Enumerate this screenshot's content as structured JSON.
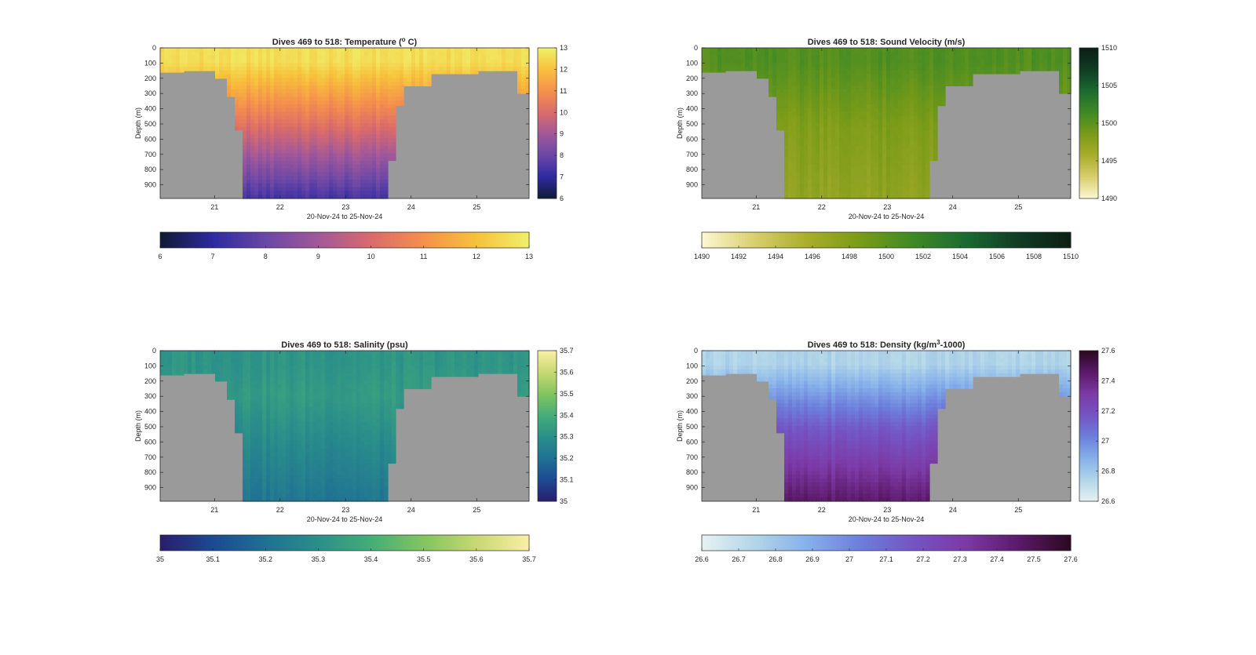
{
  "figure": {
    "title": ""
  },
  "chart_data": [
    {
      "type": "heatmap",
      "title": "Dives 469 to 518: Temperature (° C)",
      "title_parts": [
        "Dives 469 to 518: Temperature (",
        "o",
        " C)"
      ],
      "xlabel": "20-Nov-24 to 25-Nov-24",
      "ylabel": "Depth (m)",
      "x_ticks": [
        "21",
        "22",
        "23",
        "24",
        "25"
      ],
      "x_tick_values": [
        21,
        22,
        23,
        24,
        25
      ],
      "xlim": [
        20.17,
        25.8
      ],
      "y_ticks": [
        "0",
        "100",
        "200",
        "300",
        "400",
        "500",
        "600",
        "700",
        "800",
        "900"
      ],
      "ylim": [
        0,
        990
      ],
      "y_reversed": true,
      "colorbar": {
        "min": 6,
        "max": 13,
        "ticks": [
          "6",
          "7",
          "8",
          "9",
          "10",
          "11",
          "12",
          "13"
        ],
        "tick_values": [
          6,
          7,
          8,
          9,
          10,
          11,
          12,
          13
        ]
      },
      "horizontal_colorbar": {
        "ticks": [
          "6",
          "7",
          "8",
          "9",
          "10",
          "11",
          "12",
          "13"
        ],
        "tick_values": [
          6,
          7,
          8,
          9,
          10,
          11,
          12,
          13
        ]
      },
      "colormap": [
        "#0f1a33",
        "#2e2aa0",
        "#6a47a6",
        "#a1589a",
        "#d96b6b",
        "#f5904c",
        "#f7c13b",
        "#f0f06a"
      ],
      "profile": {
        "surface": 12.6,
        "mixed_layer_depth": 90,
        "mid_value": 10.2,
        "mid_depth": 500,
        "deep_value": 7.4,
        "deep_depth": 980
      },
      "land_color": "#9a9a9a",
      "profiles_max_depth": [
        {
          "x_start": 20.17,
          "x_end": 20.5,
          "max_depth": 160
        },
        {
          "x_start": 20.5,
          "x_end": 21.0,
          "max_depth": 150
        },
        {
          "x_start": 21.0,
          "x_end": 21.2,
          "max_depth": 200
        },
        {
          "x_start": 21.2,
          "x_end": 21.3,
          "max_depth": 320
        },
        {
          "x_start": 21.3,
          "x_end": 21.42,
          "max_depth": 540
        },
        {
          "x_start": 21.42,
          "x_end": 23.65,
          "max_depth": 990
        },
        {
          "x_start": 23.65,
          "x_end": 23.75,
          "max_depth": 740
        },
        {
          "x_start": 23.75,
          "x_end": 23.9,
          "max_depth": 380
        },
        {
          "x_start": 23.9,
          "x_end": 24.3,
          "max_depth": 250
        },
        {
          "x_start": 24.3,
          "x_end": 25.0,
          "max_depth": 170
        },
        {
          "x_start": 25.0,
          "x_end": 25.65,
          "max_depth": 150
        },
        {
          "x_start": 25.65,
          "x_end": 25.8,
          "max_depth": 300
        }
      ]
    },
    {
      "type": "heatmap",
      "title": "Dives 469 to 518: Sound Velocity (m/s)",
      "title_parts": [
        "Dives 469 to 518: Sound Velocity (m/s)",
        "",
        ""
      ],
      "xlabel": "20-Nov-24 to 25-Nov-24",
      "ylabel": "Depth (m)",
      "x_ticks": [
        "21",
        "22",
        "23",
        "24",
        "25"
      ],
      "x_tick_values": [
        21,
        22,
        23,
        24,
        25
      ],
      "xlim": [
        20.17,
        25.8
      ],
      "y_ticks": [
        "0",
        "100",
        "200",
        "300",
        "400",
        "500",
        "600",
        "700",
        "800",
        "900"
      ],
      "ylim": [
        0,
        990
      ],
      "y_reversed": true,
      "colorbar": {
        "min": 1490,
        "max": 1510,
        "ticks": [
          "1490",
          "1495",
          "1500",
          "1505",
          "1510"
        ],
        "tick_values": [
          1490,
          1495,
          1500,
          1505,
          1510
        ]
      },
      "horizontal_colorbar": {
        "ticks": [
          "1490",
          "1492",
          "1494",
          "1496",
          "1498",
          "1500",
          "1502",
          "1504",
          "1506",
          "1508",
          "1510"
        ],
        "tick_values": [
          1490,
          1492,
          1494,
          1496,
          1498,
          1500,
          1502,
          1504,
          1506,
          1508,
          1510
        ]
      },
      "colormap": [
        "#fcf8d2",
        "#d9cf6e",
        "#a9ad2c",
        "#7a9b18",
        "#3f8a25",
        "#1b6b31",
        "#103c24",
        "#0c1f14"
      ],
      "profile": {
        "surface": 1500.5,
        "mixed_layer_depth": 90,
        "mid_value": 1498.3,
        "mid_depth": 500,
        "deep_value": 1497.2,
        "deep_depth": 980
      },
      "land_color": "#9a9a9a",
      "profiles_max_depth": [
        {
          "x_start": 20.17,
          "x_end": 20.5,
          "max_depth": 160
        },
        {
          "x_start": 20.5,
          "x_end": 21.0,
          "max_depth": 150
        },
        {
          "x_start": 21.0,
          "x_end": 21.2,
          "max_depth": 200
        },
        {
          "x_start": 21.2,
          "x_end": 21.3,
          "max_depth": 320
        },
        {
          "x_start": 21.3,
          "x_end": 21.42,
          "max_depth": 540
        },
        {
          "x_start": 21.42,
          "x_end": 23.65,
          "max_depth": 990
        },
        {
          "x_start": 23.65,
          "x_end": 23.75,
          "max_depth": 740
        },
        {
          "x_start": 23.75,
          "x_end": 23.9,
          "max_depth": 380
        },
        {
          "x_start": 23.9,
          "x_end": 24.3,
          "max_depth": 250
        },
        {
          "x_start": 24.3,
          "x_end": 25.0,
          "max_depth": 170
        },
        {
          "x_start": 25.0,
          "x_end": 25.65,
          "max_depth": 150
        },
        {
          "x_start": 25.65,
          "x_end": 25.8,
          "max_depth": 300
        }
      ]
    },
    {
      "type": "heatmap",
      "title": "Dives 469 to 518: Salinity (psu)",
      "title_parts": [
        "Dives 469 to 518: Salinity (psu)",
        "",
        ""
      ],
      "xlabel": "20-Nov-24 to 25-Nov-24",
      "ylabel": "Depth (m)",
      "x_ticks": [
        "21",
        "22",
        "23",
        "24",
        "25"
      ],
      "x_tick_values": [
        21,
        22,
        23,
        24,
        25
      ],
      "xlim": [
        20.17,
        25.8
      ],
      "y_ticks": [
        "0",
        "100",
        "200",
        "300",
        "400",
        "500",
        "600",
        "700",
        "800",
        "900"
      ],
      "ylim": [
        0,
        990
      ],
      "y_reversed": true,
      "colorbar": {
        "min": 35,
        "max": 35.7,
        "ticks": [
          "35",
          "35.1",
          "35.2",
          "35.3",
          "35.4",
          "35.5",
          "35.6",
          "35.7"
        ],
        "tick_values": [
          35,
          35.1,
          35.2,
          35.3,
          35.4,
          35.5,
          35.6,
          35.7
        ]
      },
      "horizontal_colorbar": {
        "ticks": [
          "35",
          "35.1",
          "35.2",
          "35.3",
          "35.4",
          "35.5",
          "35.6",
          "35.7"
        ],
        "tick_values": [
          35,
          35.1,
          35.2,
          35.3,
          35.4,
          35.5,
          35.6,
          35.7
        ]
      },
      "colormap": [
        "#2a1d6b",
        "#1c4a92",
        "#1f7193",
        "#2a8f8a",
        "#44ad78",
        "#82c460",
        "#c7d873",
        "#fbeea6"
      ],
      "profile": {
        "surface": 35.32,
        "mixed_layer_depth": 90,
        "mid_value": 35.34,
        "mid_depth": 300,
        "deep_value": 35.22,
        "deep_depth": 980
      },
      "land_color": "#9a9a9a",
      "profiles_max_depth": [
        {
          "x_start": 20.17,
          "x_end": 20.5,
          "max_depth": 160
        },
        {
          "x_start": 20.5,
          "x_end": 21.0,
          "max_depth": 150
        },
        {
          "x_start": 21.0,
          "x_end": 21.2,
          "max_depth": 200
        },
        {
          "x_start": 21.2,
          "x_end": 21.3,
          "max_depth": 320
        },
        {
          "x_start": 21.3,
          "x_end": 21.42,
          "max_depth": 540
        },
        {
          "x_start": 21.42,
          "x_end": 23.65,
          "max_depth": 990
        },
        {
          "x_start": 23.65,
          "x_end": 23.75,
          "max_depth": 740
        },
        {
          "x_start": 23.75,
          "x_end": 23.9,
          "max_depth": 380
        },
        {
          "x_start": 23.9,
          "x_end": 24.3,
          "max_depth": 250
        },
        {
          "x_start": 24.3,
          "x_end": 25.0,
          "max_depth": 170
        },
        {
          "x_start": 25.0,
          "x_end": 25.65,
          "max_depth": 150
        },
        {
          "x_start": 25.65,
          "x_end": 25.8,
          "max_depth": 300
        }
      ]
    },
    {
      "type": "heatmap",
      "title": "Dives 469 to 518: Density (kg/m³-1000)",
      "title_parts": [
        "Dives 469 to 518: Density (kg/m",
        "3",
        "-1000)"
      ],
      "xlabel": "20-Nov-24 to 25-Nov-24",
      "ylabel": "Depth (m)",
      "x_ticks": [
        "21",
        "22",
        "23",
        "24",
        "25"
      ],
      "x_tick_values": [
        21,
        22,
        23,
        24,
        25
      ],
      "xlim": [
        20.17,
        25.8
      ],
      "y_ticks": [
        "0",
        "100",
        "200",
        "300",
        "400",
        "500",
        "600",
        "700",
        "800",
        "900"
      ],
      "ylim": [
        0,
        990
      ],
      "y_reversed": true,
      "colorbar": {
        "min": 26.6,
        "max": 27.6,
        "ticks": [
          "26.6",
          "26.8",
          "27",
          "27.2",
          "27.4",
          "27.6"
        ],
        "tick_values": [
          26.6,
          26.8,
          27,
          27.2,
          27.4,
          27.6
        ]
      },
      "horizontal_colorbar": {
        "ticks": [
          "26.6",
          "26.7",
          "26.8",
          "26.9",
          "27",
          "27.1",
          "27.2",
          "27.3",
          "27.4",
          "27.5",
          "27.6"
        ],
        "tick_values": [
          26.6,
          26.7,
          26.8,
          26.9,
          27,
          27.1,
          27.2,
          27.3,
          27.4,
          27.5,
          27.6
        ]
      },
      "colormap": [
        "#e6f2f2",
        "#b2d6e8",
        "#86b0ea",
        "#6c7fdb",
        "#7455c4",
        "#7c3aa6",
        "#5c1a6a",
        "#2a0a20"
      ],
      "profile": {
        "surface": 26.75,
        "mixed_layer_depth": 90,
        "mid_value": 27.15,
        "mid_depth": 500,
        "deep_value": 27.45,
        "deep_depth": 980
      },
      "land_color": "#9a9a9a",
      "profiles_max_depth": [
        {
          "x_start": 20.17,
          "x_end": 20.5,
          "max_depth": 160
        },
        {
          "x_start": 20.5,
          "x_end": 21.0,
          "max_depth": 150
        },
        {
          "x_start": 21.0,
          "x_end": 21.2,
          "max_depth": 200
        },
        {
          "x_start": 21.2,
          "x_end": 21.3,
          "max_depth": 320
        },
        {
          "x_start": 21.3,
          "x_end": 21.42,
          "max_depth": 540
        },
        {
          "x_start": 21.42,
          "x_end": 23.65,
          "max_depth": 990
        },
        {
          "x_start": 23.65,
          "x_end": 23.75,
          "max_depth": 740
        },
        {
          "x_start": 23.75,
          "x_end": 23.9,
          "max_depth": 380
        },
        {
          "x_start": 23.9,
          "x_end": 24.3,
          "max_depth": 250
        },
        {
          "x_start": 24.3,
          "x_end": 25.0,
          "max_depth": 170
        },
        {
          "x_start": 25.0,
          "x_end": 25.65,
          "max_depth": 150
        },
        {
          "x_start": 25.65,
          "x_end": 25.8,
          "max_depth": 300
        }
      ]
    }
  ]
}
